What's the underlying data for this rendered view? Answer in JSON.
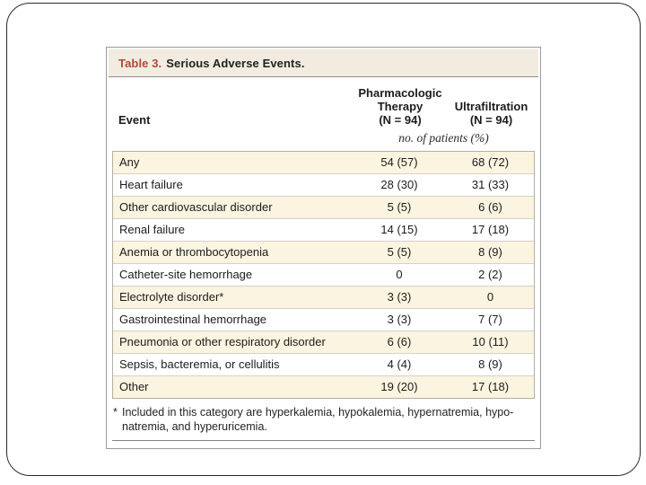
{
  "theme": {
    "accent_red": "#b5473e",
    "row_stripe_cream": "#faf4e0",
    "titlebar_cream": "#f1ecdf"
  },
  "table": {
    "title_label": "Table 3.",
    "title_text": "Serious Adverse Events.",
    "columns": {
      "event_header": "Event",
      "col1_lines": [
        "Pharmacologic",
        "Therapy",
        "(N = 94)"
      ],
      "col2_lines": [
        "Ultrafiltration",
        "(N = 94)"
      ],
      "unit_note": "no. of patients (%)"
    },
    "rows": [
      {
        "event": "Any",
        "pharm": "54 (57)",
        "ultra": "68 (72)"
      },
      {
        "event": "Heart failure",
        "pharm": "28 (30)",
        "ultra": "31 (33)"
      },
      {
        "event": "Other cardiovascular disorder",
        "pharm": "5 (5)",
        "ultra": "6 (6)"
      },
      {
        "event": "Renal failure",
        "pharm": "14 (15)",
        "ultra": "17 (18)"
      },
      {
        "event": "Anemia or thrombocytopenia",
        "pharm": "5 (5)",
        "ultra": "8 (9)"
      },
      {
        "event": "Catheter-site hemorrhage",
        "pharm": "0",
        "ultra": "2 (2)"
      },
      {
        "event": "Electrolyte disorder*",
        "pharm": "3 (3)",
        "ultra": "0"
      },
      {
        "event": "Gastrointestinal hemorrhage",
        "pharm": "3 (3)",
        "ultra": "7 (7)"
      },
      {
        "event": "Pneumonia or other respiratory disorder",
        "pharm": "6 (6)",
        "ultra": "10 (11)"
      },
      {
        "event": "Sepsis, bacteremia, or cellulitis",
        "pharm": "4 (4)",
        "ultra": "8 (9)"
      },
      {
        "event": "Other",
        "pharm": "19 (20)",
        "ultra": "17 (18)"
      }
    ],
    "footnote": {
      "marker": "*",
      "line1": "Included in this category are hyperkalemia, hypokalemia, hypernatremia, hypo-",
      "line2": "natremia, and hyperuricemia."
    }
  }
}
